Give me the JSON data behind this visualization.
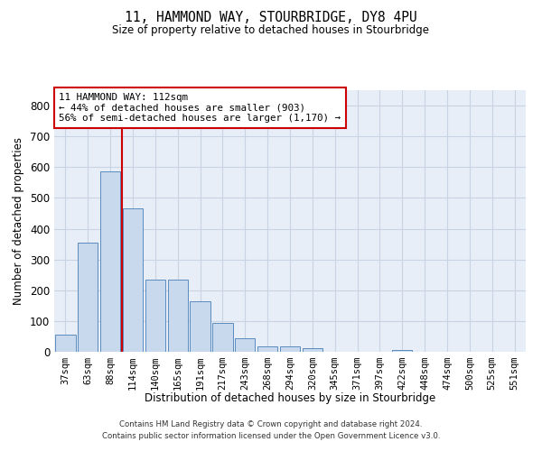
{
  "title": "11, HAMMOND WAY, STOURBRIDGE, DY8 4PU",
  "subtitle": "Size of property relative to detached houses in Stourbridge",
  "xlabel": "Distribution of detached houses by size in Stourbridge",
  "ylabel": "Number of detached properties",
  "bar_labels": [
    "37sqm",
    "63sqm",
    "88sqm",
    "114sqm",
    "140sqm",
    "165sqm",
    "191sqm",
    "217sqm",
    "243sqm",
    "268sqm",
    "294sqm",
    "320sqm",
    "345sqm",
    "371sqm",
    "397sqm",
    "422sqm",
    "448sqm",
    "474sqm",
    "500sqm",
    "525sqm",
    "551sqm"
  ],
  "bar_values": [
    55,
    355,
    585,
    465,
    235,
    235,
    165,
    95,
    43,
    18,
    17,
    12,
    0,
    0,
    0,
    6,
    0,
    0,
    0,
    0,
    0
  ],
  "bar_color": "#c9d9ed",
  "bar_edge_color": "#5b8bbf",
  "grid_color": "#c8d4e3",
  "background_color": "#e8eef7",
  "property_line_color": "#cc0000",
  "annotation_text": "11 HAMMOND WAY: 112sqm\n← 44% of detached houses are smaller (903)\n56% of semi-detached houses are larger (1,170) →",
  "annotation_box_color": "#cc0000",
  "footer_line1": "Contains HM Land Registry data © Crown copyright and database right 2024.",
  "footer_line2": "Contains public sector information licensed under the Open Government Licence v3.0.",
  "ylim": [
    0,
    850
  ],
  "yticks": [
    0,
    100,
    200,
    300,
    400,
    500,
    600,
    700,
    800
  ]
}
